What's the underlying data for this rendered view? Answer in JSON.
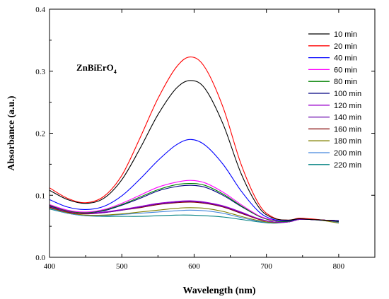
{
  "chart_data": {
    "type": "line",
    "title": "",
    "xlabel": "Wavelength (nm)",
    "ylabel": "Absorbance (a.u.)",
    "xlim": [
      400,
      850
    ],
    "ylim": [
      0.0,
      0.4
    ],
    "xticks": [
      400,
      500,
      600,
      700,
      800
    ],
    "yticks": [
      0.0,
      0.1,
      0.2,
      0.3,
      0.4
    ],
    "xtick_labels": [
      "400",
      "500",
      "600",
      "700",
      "800"
    ],
    "ytick_labels": [
      "0.0",
      "0.1",
      "0.2",
      "0.3",
      "0.4"
    ],
    "grid": false,
    "legend_position": "right",
    "annotation": {
      "text_main": "ZnBiErO",
      "text_sub": "4"
    },
    "x": [
      400,
      425,
      450,
      475,
      500,
      525,
      550,
      575,
      595,
      615,
      640,
      665,
      690,
      710,
      730,
      745,
      760,
      780,
      800
    ],
    "series": [
      {
        "name": "10 min",
        "color": "#000000",
        "values": [
          0.108,
          0.093,
          0.087,
          0.095,
          0.125,
          0.175,
          0.23,
          0.272,
          0.285,
          0.272,
          0.215,
          0.135,
          0.08,
          0.063,
          0.06,
          0.062,
          0.061,
          0.06,
          0.058
        ]
      },
      {
        "name": "20 min",
        "color": "#ff0000",
        "values": [
          0.112,
          0.095,
          0.088,
          0.098,
          0.132,
          0.192,
          0.256,
          0.306,
          0.323,
          0.306,
          0.242,
          0.15,
          0.085,
          0.064,
          0.06,
          0.063,
          0.062,
          0.06,
          0.058
        ]
      },
      {
        "name": "40 min",
        "color": "#0000ff",
        "values": [
          0.093,
          0.081,
          0.077,
          0.082,
          0.099,
          0.126,
          0.156,
          0.181,
          0.19,
          0.181,
          0.15,
          0.107,
          0.073,
          0.061,
          0.059,
          0.062,
          0.061,
          0.06,
          0.059
        ]
      },
      {
        "name": "60 min",
        "color": "#ff00ff",
        "values": [
          0.085,
          0.076,
          0.073,
          0.077,
          0.087,
          0.1,
          0.113,
          0.121,
          0.124,
          0.12,
          0.105,
          0.085,
          0.067,
          0.06,
          0.059,
          0.062,
          0.061,
          0.06,
          0.058
        ]
      },
      {
        "name": "80 min",
        "color": "#008000",
        "values": [
          0.084,
          0.075,
          0.072,
          0.076,
          0.085,
          0.097,
          0.109,
          0.117,
          0.119,
          0.116,
          0.102,
          0.083,
          0.066,
          0.059,
          0.058,
          0.062,
          0.061,
          0.06,
          0.058
        ]
      },
      {
        "name": "100 min",
        "color": "#000080",
        "values": [
          0.083,
          0.075,
          0.072,
          0.075,
          0.084,
          0.095,
          0.107,
          0.114,
          0.116,
          0.113,
          0.1,
          0.082,
          0.066,
          0.059,
          0.058,
          0.062,
          0.061,
          0.06,
          0.058
        ]
      },
      {
        "name": "120 min",
        "color": "#9900cc",
        "values": [
          0.082,
          0.074,
          0.071,
          0.073,
          0.077,
          0.082,
          0.087,
          0.09,
          0.091,
          0.089,
          0.083,
          0.073,
          0.062,
          0.057,
          0.057,
          0.061,
          0.061,
          0.06,
          0.059
        ]
      },
      {
        "name": "140 min",
        "color": "#6600aa",
        "values": [
          0.082,
          0.074,
          0.071,
          0.072,
          0.076,
          0.081,
          0.086,
          0.089,
          0.09,
          0.088,
          0.082,
          0.072,
          0.062,
          0.057,
          0.057,
          0.061,
          0.061,
          0.06,
          0.059
        ]
      },
      {
        "name": "160 min",
        "color": "#800000",
        "values": [
          0.081,
          0.073,
          0.07,
          0.072,
          0.076,
          0.08,
          0.085,
          0.088,
          0.089,
          0.087,
          0.081,
          0.071,
          0.061,
          0.057,
          0.057,
          0.061,
          0.061,
          0.06,
          0.059
        ]
      },
      {
        "name": "180 min",
        "color": "#808000",
        "values": [
          0.08,
          0.072,
          0.068,
          0.068,
          0.07,
          0.073,
          0.076,
          0.079,
          0.08,
          0.079,
          0.074,
          0.066,
          0.059,
          0.056,
          0.057,
          0.061,
          0.061,
          0.059,
          0.055
        ]
      },
      {
        "name": "200 min",
        "color": "#4488dd",
        "values": [
          0.079,
          0.071,
          0.067,
          0.067,
          0.069,
          0.071,
          0.073,
          0.075,
          0.076,
          0.075,
          0.071,
          0.064,
          0.058,
          0.056,
          0.057,
          0.061,
          0.061,
          0.059,
          0.056
        ]
      },
      {
        "name": "220 min",
        "color": "#008080",
        "values": [
          0.078,
          0.071,
          0.067,
          0.066,
          0.066,
          0.066,
          0.067,
          0.068,
          0.068,
          0.067,
          0.065,
          0.061,
          0.057,
          0.055,
          0.057,
          0.061,
          0.061,
          0.059,
          0.057
        ]
      }
    ]
  }
}
